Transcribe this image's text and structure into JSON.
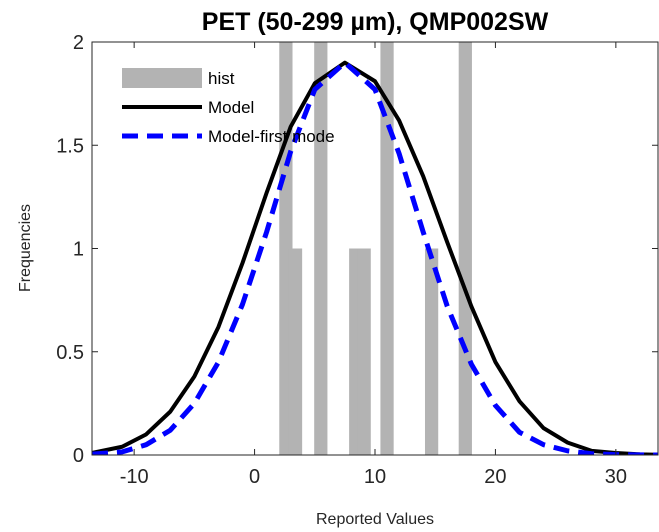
{
  "chart_data": {
    "type": "bar",
    "title": "PET (50-299 µm), QMP002SW",
    "xlabel": "Reported Values",
    "ylabel": "Frequencies",
    "xlim": [
      -13.5,
      33.5
    ],
    "ylim": [
      0,
      2
    ],
    "xticks": [
      -10,
      0,
      10,
      20,
      30
    ],
    "yticks": [
      0,
      0.5,
      1,
      1.5,
      2
    ],
    "ytick_labels": [
      "0",
      "0.5",
      "1",
      "1.5",
      "2"
    ],
    "legend_position": "top-left",
    "grid": false,
    "series": [
      {
        "name": "hist",
        "kind": "histogram",
        "color": "#b3b3b3",
        "bin_width": 1.1,
        "bins": [
          {
            "x": 2.6,
            "count": 2
          },
          {
            "x": 3.4,
            "count": 1
          },
          {
            "x": 5.5,
            "count": 2
          },
          {
            "x": 8.4,
            "count": 1
          },
          {
            "x": 9.1,
            "count": 1
          },
          {
            "x": 11.0,
            "count": 2
          },
          {
            "x": 14.7,
            "count": 1
          },
          {
            "x": 17.5,
            "count": 2
          }
        ]
      },
      {
        "name": "Model",
        "kind": "line",
        "color": "#000000",
        "style": "solid",
        "x": [
          -13.5,
          -11,
          -9,
          -7,
          -5,
          -3,
          -1,
          1,
          3,
          5,
          7.5,
          10,
          12,
          14,
          16,
          18,
          20,
          22,
          24,
          26,
          28,
          30,
          32,
          33.5
        ],
        "y": [
          0.01,
          0.04,
          0.1,
          0.21,
          0.38,
          0.62,
          0.93,
          1.27,
          1.59,
          1.8,
          1.9,
          1.81,
          1.62,
          1.35,
          1.03,
          0.72,
          0.45,
          0.26,
          0.13,
          0.06,
          0.02,
          0.01,
          0.003,
          0.001
        ]
      },
      {
        "name": "Model-first mode",
        "kind": "line",
        "color": "#0000ff",
        "style": "dashed",
        "x": [
          -13.5,
          -11,
          -9,
          -7,
          -5,
          -3,
          -1,
          1,
          3,
          5,
          7.5,
          10,
          12,
          14,
          16,
          18,
          20,
          22,
          24,
          26,
          28,
          30,
          32,
          33.5
        ],
        "y": [
          0.004,
          0.015,
          0.05,
          0.12,
          0.25,
          0.45,
          0.73,
          1.08,
          1.47,
          1.77,
          1.9,
          1.77,
          1.46,
          1.08,
          0.72,
          0.44,
          0.24,
          0.11,
          0.05,
          0.02,
          0.006,
          0.002,
          0.0005,
          0.0002
        ]
      }
    ]
  }
}
